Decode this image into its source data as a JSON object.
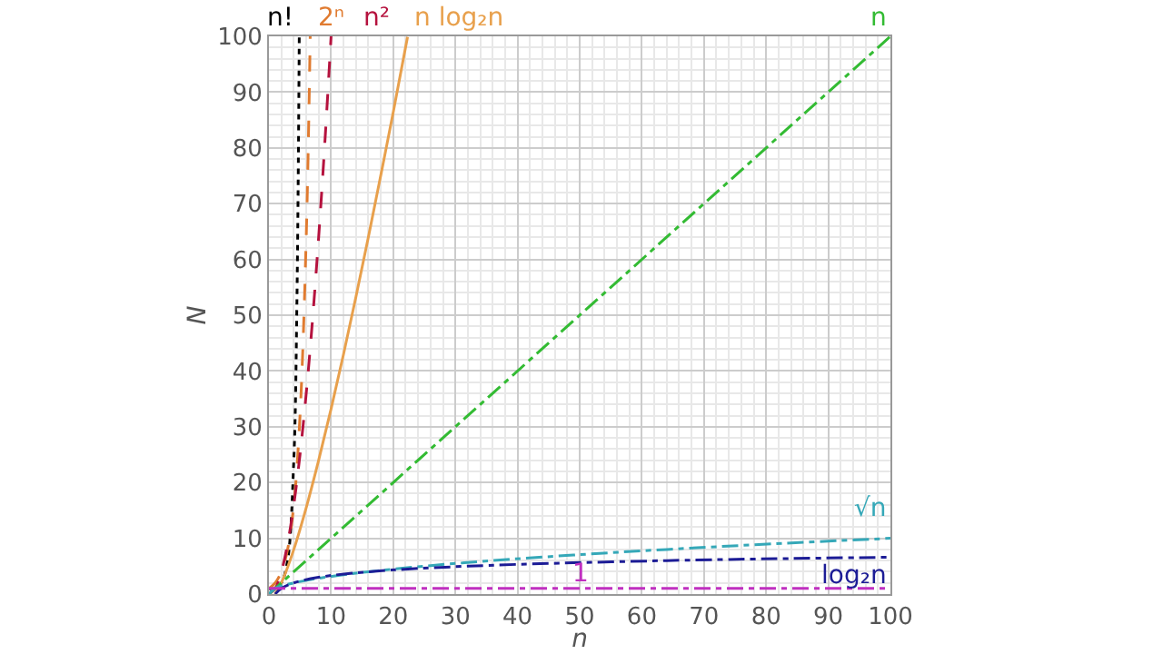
{
  "chart_data": {
    "type": "line",
    "xlabel": "n",
    "ylabel": "N",
    "xlim": [
      0,
      100
    ],
    "ylim": [
      0,
      100
    ],
    "xticks": [
      0,
      10,
      20,
      30,
      40,
      50,
      60,
      70,
      80,
      90,
      100
    ],
    "yticks": [
      0,
      10,
      20,
      30,
      40,
      50,
      60,
      70,
      80,
      90,
      100
    ],
    "grid": true,
    "legend": false,
    "marker": "none",
    "series": [
      {
        "name": "n!",
        "color": "#000000",
        "line_style": "dotted",
        "x": [
          0,
          1,
          2,
          3,
          4,
          4.5,
          4.88
        ],
        "values": [
          1,
          1,
          2,
          6,
          24,
          52.3,
          100
        ]
      },
      {
        "name": "2ⁿ",
        "color": "#e07b30",
        "line_style": "dashed",
        "x": [
          0,
          1,
          2,
          3,
          4,
          5,
          6,
          6.64
        ],
        "values": [
          1,
          2,
          4,
          8,
          16,
          32,
          64,
          100
        ]
      },
      {
        "name": "n²",
        "color": "#b5123e",
        "line_style": "dashed",
        "x": [
          0,
          1,
          2,
          3,
          4,
          5,
          6,
          7,
          8,
          9,
          10
        ],
        "values": [
          0,
          1,
          4,
          9,
          16,
          25,
          36,
          49,
          64,
          81,
          100
        ]
      },
      {
        "name": "n log₂n",
        "color": "#e8a04c",
        "line_style": "solid",
        "x": [
          1,
          2,
          4,
          6,
          8,
          10,
          12,
          14,
          16,
          18,
          20,
          22.3
        ],
        "values": [
          0,
          2,
          8,
          15.5,
          24,
          33.2,
          43,
          53.3,
          64,
          75.1,
          86.4,
          99.9
        ]
      },
      {
        "name": "n",
        "color": "#33bb33",
        "line_style": "dashdot",
        "x": [
          0,
          100
        ],
        "values": [
          0,
          100
        ]
      },
      {
        "name": "√n",
        "color": "#35a8b8",
        "line_style": "dashdot",
        "x": [
          0,
          1,
          4,
          9,
          16,
          25,
          36,
          49,
          64,
          81,
          100
        ],
        "values": [
          0,
          1,
          2,
          3,
          4,
          5,
          6,
          7,
          8,
          9,
          10
        ]
      },
      {
        "name": "log₂n",
        "color": "#1c1c96",
        "line_style": "dashdot",
        "x": [
          1,
          2,
          4,
          8,
          16,
          32,
          64,
          100
        ],
        "values": [
          0,
          1,
          2,
          3,
          4,
          5,
          6,
          6.6
        ]
      },
      {
        "name": "1",
        "color": "#c030c0",
        "line_style": "dashdot",
        "x": [
          0,
          100
        ],
        "values": [
          1,
          1
        ]
      }
    ]
  }
}
